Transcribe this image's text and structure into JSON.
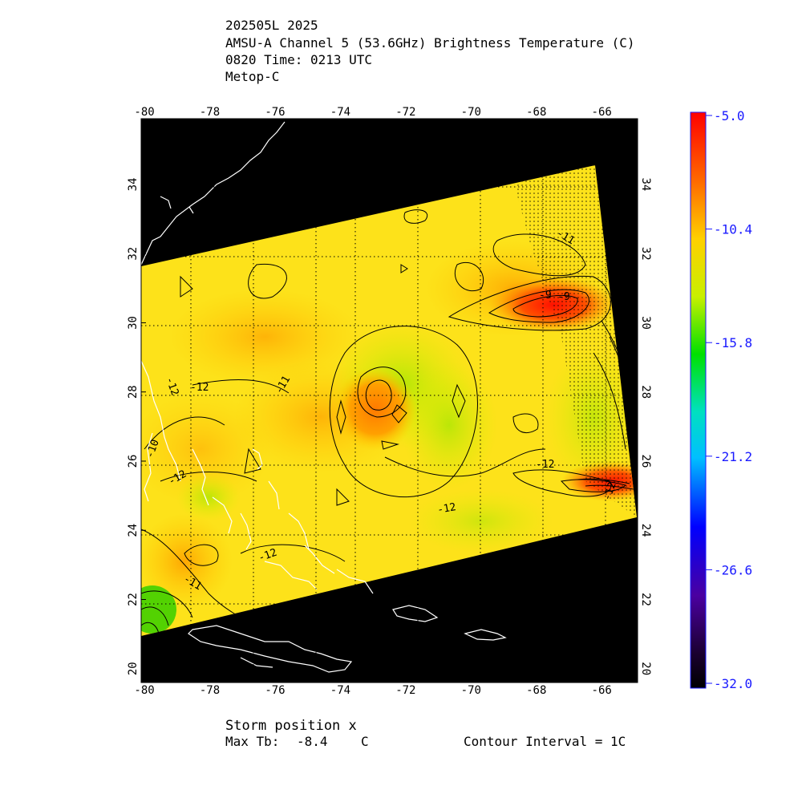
{
  "header": {
    "line1": "202505L 2025",
    "line2": "AMSU-A Channel 5 (53.6GHz) Brightness Temperature (C)",
    "line3": "0820 Time: 0213 UTC",
    "line4": "Metop-C"
  },
  "axes": {
    "lon_ticks": [
      -80,
      -78,
      -76,
      -74,
      -72,
      -70,
      -68,
      -66
    ],
    "lat_ticks": [
      20,
      22,
      24,
      26,
      28,
      30,
      32,
      34
    ],
    "lon_range": [
      -80.1,
      -64.9
    ],
    "lat_range": [
      19.6,
      35.9
    ]
  },
  "colorbar": {
    "labels": [
      "-5.0",
      "-10.4",
      "-15.8",
      "-21.2",
      "-26.6",
      "-32.0"
    ],
    "values": [
      -5.0,
      -10.4,
      -15.8,
      -21.2,
      -26.6,
      -32.0
    ],
    "colors": [
      "#ff0000",
      "#ff7a00",
      "#ffe600",
      "#00e000",
      "#00d8ff",
      "#0000ff",
      "#3a0078",
      "#000000"
    ]
  },
  "contour_labels": [
    "-12",
    "-12",
    "-11",
    "-10",
    "-12",
    "-12",
    "-12",
    "-12",
    "-11",
    "-11",
    "-9",
    "-9",
    "-12"
  ],
  "footer": {
    "storm_position": "Storm position x",
    "max_tb_label": "Max Tb:",
    "max_tb_value": "-8.4",
    "max_tb_unit": "C",
    "contour_interval": "Contour Interval = 1C"
  }
}
